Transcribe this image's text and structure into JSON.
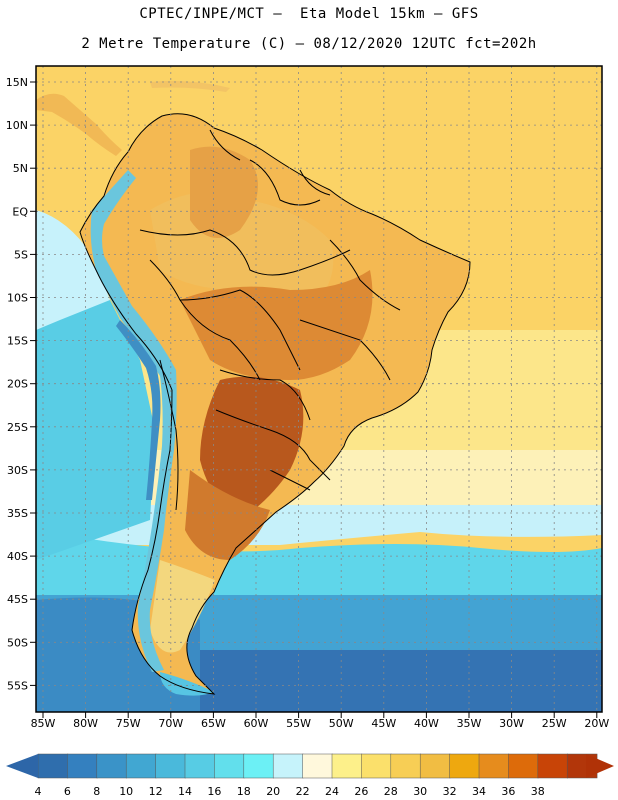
{
  "title": {
    "line1": "CPTEC/INPE/MCT –  Eta Model 15km – GFS",
    "line2": "2 Metre Temperature (C) – 08/12/2020 12UTC fct=202h"
  },
  "lat_labels": [
    "15N",
    "10N",
    "5N",
    "EQ",
    "5S",
    "10S",
    "15S",
    "20S",
    "25S",
    "30S",
    "35S",
    "40S",
    "45S",
    "50S",
    "55S"
  ],
  "lon_labels": [
    "85W",
    "80W",
    "75W",
    "70W",
    "65W",
    "60W",
    "55W",
    "50W",
    "45W",
    "40W",
    "35W",
    "30W",
    "25W",
    "20W"
  ],
  "colorbar": {
    "labels": [
      "4",
      "6",
      "8",
      "10",
      "12",
      "14",
      "16",
      "18",
      "20",
      "22",
      "24",
      "26",
      "28",
      "30",
      "32",
      "34",
      "36",
      "38"
    ],
    "colors": [
      "#2f6ead",
      "#3480bf",
      "#3a93c8",
      "#41a7d2",
      "#4ab9db",
      "#57cce4",
      "#62dfec",
      "#6cf0f5",
      "#c6f3fb",
      "#fff8dc",
      "#fdf08a",
      "#fbe06b",
      "#f7ce55",
      "#f1bd43",
      "#eea80f",
      "#e68c1d",
      "#dd6b0a",
      "#c84407",
      "#b2360a"
    ],
    "low_color": "#2d66a8",
    "high_color": "#b03207"
  },
  "palette": {
    "ocean_deep": "#3371b2",
    "ocean_mid": "#4191c9",
    "ocean_cool": "#57c5e3",
    "ocean_warm": "#fbe272",
    "ocean_tropic": "#fbd060",
    "land_hot": "#c86a27",
    "land_warm": "#e6a043",
    "andes": "#66c0db"
  }
}
